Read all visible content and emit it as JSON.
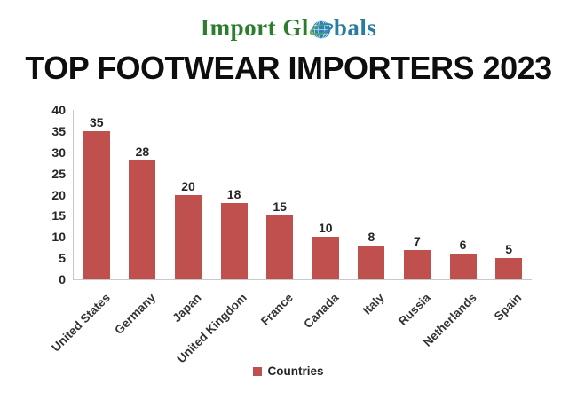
{
  "logo": {
    "prefix": "Import Gl",
    "suffix": "bals",
    "green_color": "#2d7d2f",
    "blue_color": "#2a7d9e"
  },
  "chart_data": {
    "type": "bar",
    "title": "TOP FOOTWEAR IMPORTERS 2023",
    "categories": [
      "United States",
      "Germany",
      "Japan",
      "United Kingdom",
      "France",
      "Canada",
      "Italy",
      "Russia",
      "Netherlands",
      "Spain"
    ],
    "values": [
      35,
      28,
      20,
      18,
      15,
      10,
      8,
      7,
      6,
      5
    ],
    "series_name": "Countries",
    "xlabel": "",
    "ylabel": "",
    "ylim": [
      0,
      40
    ],
    "yticks": [
      0,
      5,
      10,
      15,
      20,
      25,
      30,
      35,
      40
    ],
    "grid": false,
    "legend_position": "bottom",
    "bar_color": "#c0504d",
    "axis_color": "#c9c9c9",
    "label_color": "#262626"
  },
  "legend": {
    "label": "Countries"
  }
}
